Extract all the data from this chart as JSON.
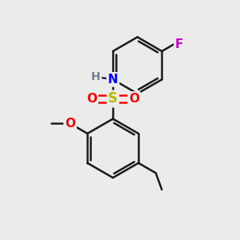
{
  "bg_color": "#ebebeb",
  "bond_color": "#1a1a1a",
  "bond_width": 1.8,
  "atom_colors": {
    "S": "#b8b800",
    "O": "#ff0000",
    "N": "#0000ff",
    "H": "#708090",
    "F": "#cc00cc"
  },
  "font_size": 11,
  "fig_size": [
    3.0,
    3.0
  ],
  "dpi": 100
}
